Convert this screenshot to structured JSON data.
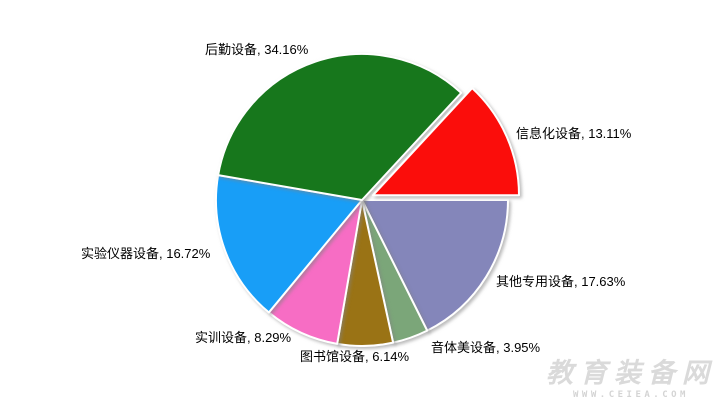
{
  "chart_data": {
    "type": "pie",
    "title": "",
    "unit": "%",
    "total": 100,
    "start_angle_deg": 90,
    "direction": "clockwise",
    "legend_position": "none",
    "labels_outside": true,
    "categories": [
      "其他专用设备",
      "音体美设备",
      "图书馆设备",
      "实训设备",
      "实验仪器设备",
      "后勤设备",
      "信息化设备"
    ],
    "values": [
      17.63,
      3.95,
      6.14,
      8.29,
      16.72,
      34.16,
      13.11
    ],
    "slices": [
      {
        "key": "qita-zhuanyong-shebei",
        "name": "其他专用设备",
        "value": 17.63,
        "color": "#8486BA",
        "exploded": false
      },
      {
        "key": "yintimei-shebei",
        "name": "音体美设备",
        "value": 3.95,
        "color": "#7BA679",
        "exploded": false
      },
      {
        "key": "tushuguan-shebei",
        "name": "图书馆设备",
        "value": 6.14,
        "color": "#9A7315",
        "exploded": false
      },
      {
        "key": "shixun-shebei",
        "name": "实训设备",
        "value": 8.29,
        "color": "#F76DC4",
        "exploded": false
      },
      {
        "key": "shiyan-yiqi-shebei",
        "name": "实验仪器设备",
        "value": 16.72,
        "color": "#189EF7",
        "exploded": false
      },
      {
        "key": "houqin-shebei",
        "name": "后勤设备",
        "value": 34.16,
        "color": "#17771C",
        "exploded": false
      },
      {
        "key": "xinxihua-shebei",
        "name": "信息化设备",
        "value": 13.11,
        "color": "#FB0D0B",
        "exploded": true
      }
    ]
  },
  "labels": [
    "后勤设备, 34.16%",
    "信息化设备, 13.11%",
    "其他专用设备, 17.63%",
    "音体美设备, 3.95%",
    "图书馆设备, 6.14%",
    "实训设备, 8.29%",
    "实验仪器设备, 16.72%"
  ],
  "watermark": {
    "line1": "教育装备网",
    "line2": "WWW.CEIEA.COM"
  }
}
